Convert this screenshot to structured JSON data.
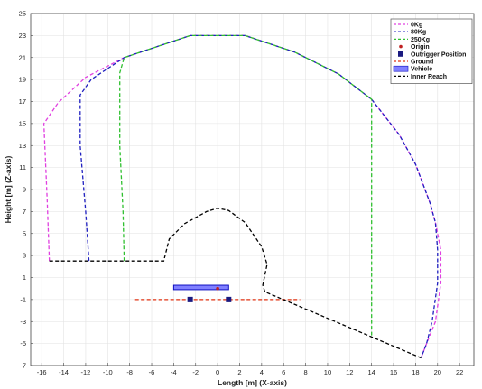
{
  "chart_data": {
    "type": "line",
    "xlabel": "Length [m] (X-axis)",
    "ylabel": "Height [m] (Z-axis)",
    "xlim": [
      -17,
      23.3
    ],
    "ylim": [
      -7,
      25
    ],
    "xticks": [
      -16,
      -14,
      -12,
      -10,
      -8,
      -6,
      -4,
      -2,
      0,
      2,
      4,
      6,
      8,
      10,
      12,
      14,
      16,
      18,
      20,
      22
    ],
    "yticks": [
      -7,
      -5,
      -3,
      -1,
      1,
      3,
      5,
      7,
      9,
      11,
      13,
      15,
      17,
      19,
      21,
      23,
      25
    ],
    "grid": true,
    "legend_position": "top-right",
    "series": [
      {
        "name": "0Kg",
        "color": "#e040e0",
        "style": "dashed",
        "points": [
          [
            -15.3,
            2.5
          ],
          [
            -15.5,
            8
          ],
          [
            -15.8,
            15
          ],
          [
            -14.5,
            16.9
          ],
          [
            -12,
            19.2
          ],
          [
            -8.5,
            21
          ],
          [
            -2.5,
            23
          ],
          [
            2.5,
            23
          ],
          [
            7,
            21.5
          ],
          [
            11,
            19.5
          ],
          [
            14,
            17.2
          ],
          [
            16.5,
            14
          ],
          [
            18,
            11.3
          ],
          [
            19.3,
            7.8
          ],
          [
            19.8,
            6
          ],
          [
            20.3,
            3.5
          ],
          [
            20.3,
            0.5
          ],
          [
            19.8,
            -3
          ],
          [
            19,
            -5
          ],
          [
            18.5,
            -6.3
          ]
        ]
      },
      {
        "name": "80Kg",
        "color": "#2020c0",
        "style": "dashed",
        "points": [
          [
            -11.7,
            2.5
          ],
          [
            -12,
            7
          ],
          [
            -12.5,
            13
          ],
          [
            -12.5,
            17.6
          ],
          [
            -11.5,
            19
          ],
          [
            -8.5,
            21
          ],
          [
            -2.5,
            23
          ],
          [
            2.5,
            23
          ],
          [
            7,
            21.5
          ],
          [
            11,
            19.5
          ],
          [
            14,
            17.2
          ],
          [
            16.5,
            14
          ],
          [
            18,
            11.3
          ],
          [
            19.3,
            7.8
          ],
          [
            19.8,
            6
          ],
          [
            20,
            3.5
          ],
          [
            20,
            0.5
          ],
          [
            19.5,
            -3
          ],
          [
            19,
            -5
          ],
          [
            18.5,
            -6.3
          ]
        ]
      },
      {
        "name": "250Kg",
        "color": "#30c030",
        "style": "dashed",
        "points": [
          [
            -8.5,
            2.5
          ],
          [
            -8.6,
            7
          ],
          [
            -8.9,
            13
          ],
          [
            -8.9,
            19.6
          ],
          [
            -8.5,
            21
          ],
          [
            -2.5,
            23
          ],
          [
            2.5,
            23
          ],
          [
            7,
            21.5
          ],
          [
            11,
            19.5
          ],
          [
            14,
            17.2
          ],
          [
            14,
            -4.5
          ]
        ]
      },
      {
        "name": "Ground",
        "color": "#e03010",
        "style": "dashed",
        "points": [
          [
            -7.5,
            -1
          ],
          [
            7.5,
            -1
          ]
        ]
      },
      {
        "name": "Inner Reach",
        "color": "#000000",
        "style": "dashed",
        "points": [
          [
            -15.3,
            2.5
          ],
          [
            -4.9,
            2.5
          ],
          [
            -4.4,
            4.5
          ],
          [
            -3,
            5.9
          ],
          [
            -1,
            7
          ],
          [
            0,
            7.3
          ],
          [
            1,
            7.1
          ],
          [
            2.5,
            6
          ],
          [
            4,
            3.8
          ],
          [
            4.5,
            2.2
          ],
          [
            4.1,
            0.3
          ],
          [
            4.3,
            -0.3
          ],
          [
            18.5,
            -6.3
          ]
        ]
      }
    ],
    "origin": {
      "name": "Origin",
      "color": "#c02020",
      "x": 0,
      "z": 0
    },
    "outriggers": {
      "name": "Outrigger Position",
      "color": "#1a1a80",
      "points": [
        [
          -2.5,
          -1
        ],
        [
          1,
          -1
        ]
      ]
    },
    "vehicle": {
      "name": "Vehicle",
      "color": "#8080ff",
      "outline": "#1010c0",
      "x0": -4,
      "x1": 1,
      "z0": -0.1,
      "z1": 0.3
    },
    "legend": [
      "0Kg",
      "80Kg",
      "250Kg",
      "Origin",
      "Outrigger Position",
      "Ground",
      "Vehicle",
      "Inner Reach"
    ]
  }
}
